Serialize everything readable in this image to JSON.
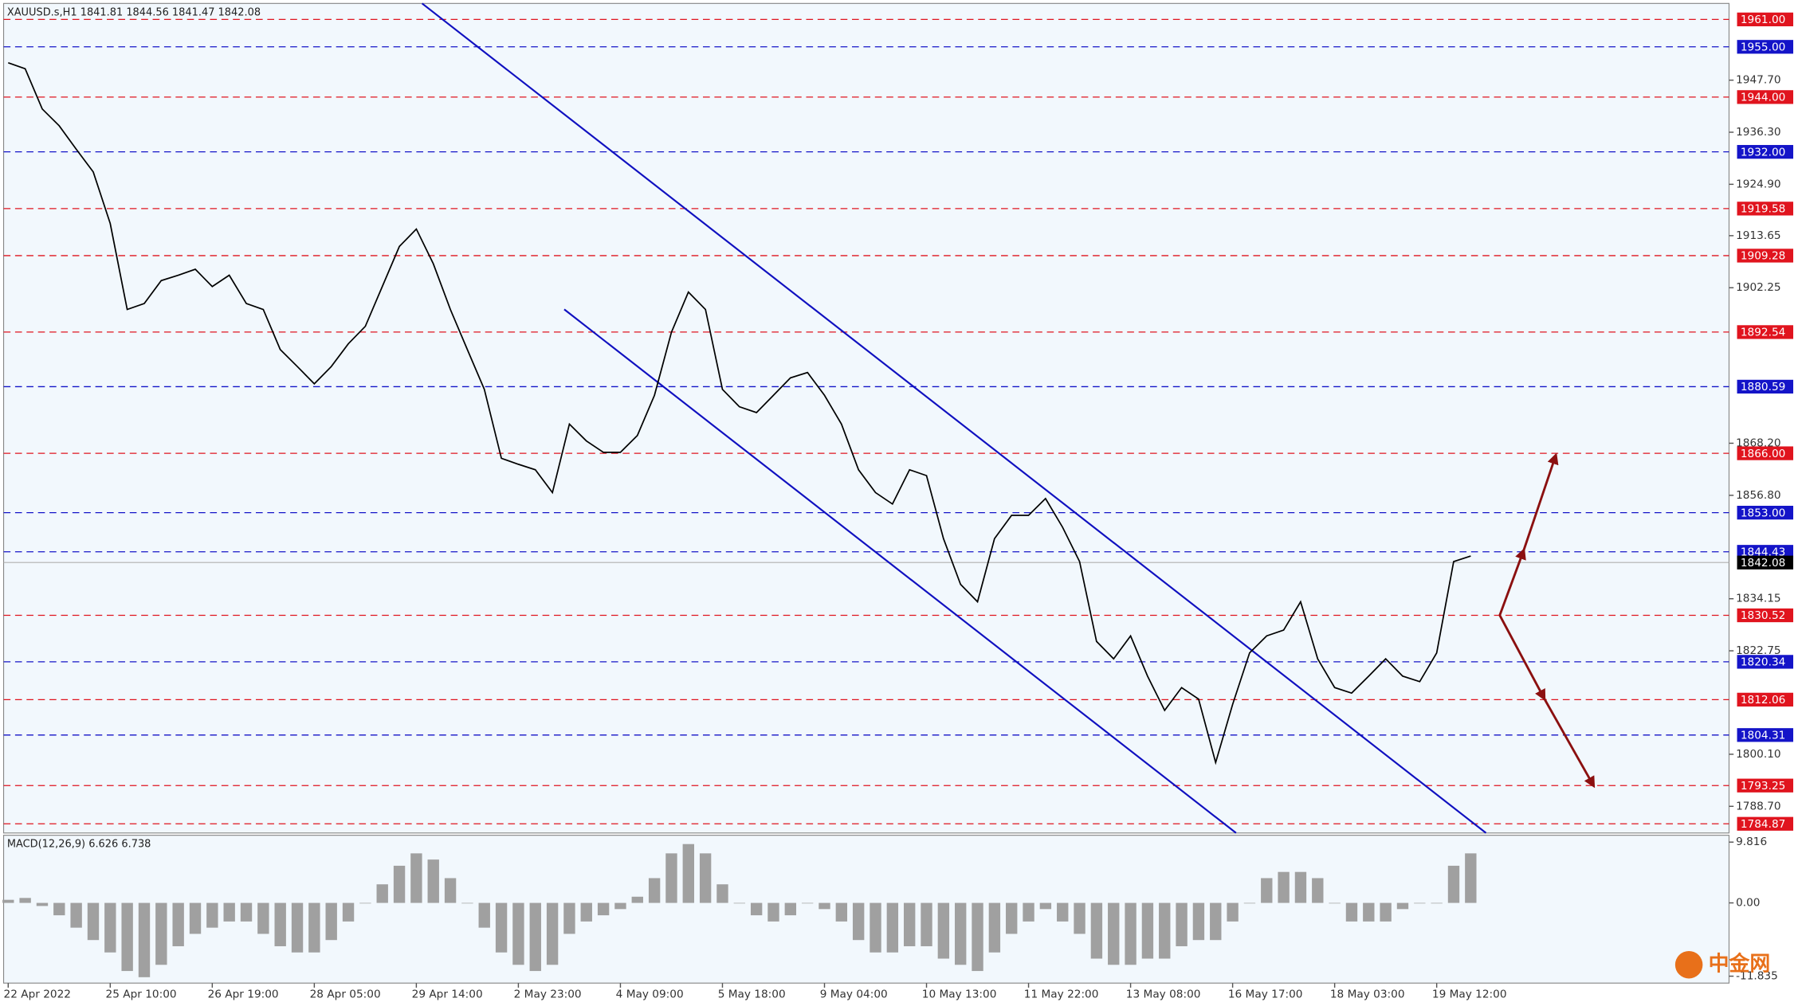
{
  "chart_data": [
    {
      "type": "line",
      "title": "XAUUSD.s,H1  1841.81 1844.56 1841.47 1842.08",
      "categories": [
        "22 Apr 2022",
        null,
        null,
        null,
        null,
        null,
        "25 Apr 10:00",
        null,
        null,
        null,
        null,
        null,
        "26 Apr 19:00",
        null,
        null,
        null,
        null,
        null,
        "28 Apr 05:00",
        null,
        null,
        null,
        null,
        null,
        "29 Apr 14:00",
        null,
        null,
        null,
        null,
        null,
        "2 May 23:00",
        null,
        null,
        null,
        null,
        null,
        "4 May 09:00",
        null,
        null,
        null,
        null,
        null,
        "5 May 18:00",
        null,
        null,
        null,
        null,
        null,
        "9 May 04:00",
        null,
        null,
        null,
        null,
        null,
        "10 May 13:00",
        null,
        null,
        null,
        null,
        null,
        "11 May 22:00",
        null,
        null,
        null,
        null,
        null,
        "13 May 08:00",
        null,
        null,
        null,
        null,
        null,
        "16 May 17:00",
        null,
        null,
        null,
        null,
        null,
        "18 May 03:00",
        null,
        null,
        null,
        null,
        null,
        "19 May 12:00",
        null,
        null
      ],
      "series": [
        {
          "color": "#000000",
          "values": [
            1951.5,
            1950.2,
            1941.4,
            1937.7,
            1932.6,
            1927.6,
            1916.3,
            1897.5,
            1898.8,
            1903.8,
            1905,
            1906.3,
            1902.5,
            1905,
            1898.8,
            1897.5,
            1888.7,
            1885,
            1881.2,
            1885,
            1890,
            1893.8,
            1902.5,
            1911.3,
            1915.1,
            1907.5,
            1897.5,
            1888.7,
            1880,
            1864.9,
            1863.6,
            1862.4,
            1857.4,
            1872.4,
            1868.7,
            1866.2,
            1866.2,
            1869.9,
            1878.7,
            1892.5,
            1901.3,
            1897.5,
            1880,
            1876.2,
            1874.9,
            1878.7,
            1882.5,
            1883.7,
            1878.7,
            1872.4,
            1862.4,
            1857.4,
            1854.9,
            1862.4,
            1861.1,
            1847.3,
            1837.3,
            1833.5,
            1847.3,
            1852.4,
            1852.4,
            1856.1,
            1849.8,
            1842.3,
            1824.8,
            1821,
            1826,
            1817.2,
            1809.7,
            1814.7,
            1812.2,
            1798.3,
            1811,
            1822.3,
            1826,
            1827.3,
            1833.5,
            1821,
            1814.7,
            1813.5,
            1817.2,
            1821,
            1817.2,
            1816,
            1822.3,
            1842.3,
            1843.5
          ]
        }
      ],
      "ylim": [
        1782.86,
        1964.5
      ],
      "yticks": [
        {
          "value": 1947.7,
          "label": "1947.70"
        },
        {
          "value": 1936.3,
          "label": "1936.30"
        },
        {
          "value": 1924.9,
          "label": "1924.90"
        },
        {
          "value": 1913.65,
          "label": "1913.65"
        },
        {
          "value": 1902.25,
          "label": "1902.25"
        },
        {
          "value": 1868.2,
          "label": "1868.20"
        },
        {
          "value": 1856.8,
          "label": "1856.80"
        },
        {
          "value": 1834.15,
          "label": "1834.15"
        },
        {
          "value": 1822.75,
          "label": "1822.75"
        },
        {
          "value": 1800.1,
          "label": "1800.10"
        },
        {
          "value": 1788.7,
          "label": "1788.70"
        }
      ],
      "levels": [
        {
          "value": 1961,
          "label": "1961.00",
          "color": "#e0141e"
        },
        {
          "value": 1955,
          "label": "1955.00",
          "color": "#1414c8"
        },
        {
          "value": 1944,
          "label": "1944.00",
          "color": "#e0141e"
        },
        {
          "value": 1932,
          "label": "1932.00",
          "color": "#1414c8"
        },
        {
          "value": 1919.58,
          "label": "1919.58",
          "color": "#e0141e"
        },
        {
          "value": 1909.28,
          "label": "1909.28",
          "color": "#e0141e"
        },
        {
          "value": 1892.54,
          "label": "1892.54",
          "color": "#e0141e"
        },
        {
          "value": 1880.59,
          "label": "1880.59",
          "color": "#1414c8"
        },
        {
          "value": 1866,
          "label": "1866.00",
          "color": "#e0141e"
        },
        {
          "value": 1853,
          "label": "1853.00",
          "color": "#1414c8"
        },
        {
          "value": 1844.43,
          "label": "1844.43",
          "color": "#1414c8"
        },
        {
          "value": 1830.52,
          "label": "1830.52",
          "color": "#e0141e"
        },
        {
          "value": 1820.34,
          "label": "1820.34",
          "color": "#1414c8"
        },
        {
          "value": 1812.06,
          "label": "1812.06",
          "color": "#e0141e"
        },
        {
          "value": 1804.31,
          "label": "1804.31",
          "color": "#1414c8"
        },
        {
          "value": 1793.25,
          "label": "1793.25",
          "color": "#e0141e"
        },
        {
          "value": 1784.87,
          "label": "1784.87",
          "color": "#e0141e"
        }
      ],
      "current": {
        "value": 1842.08,
        "label": "1842.08",
        "color": "#000000"
      }
    },
    {
      "type": "bar",
      "title": "MACD(12,26,9) 6.626 6.738",
      "color": "#a0a0a0",
      "values": [
        0.5,
        0.8,
        -0.5,
        -2,
        -4,
        -6,
        -8,
        -11,
        -12,
        -10,
        -7,
        -5,
        -4,
        -3,
        -3,
        -5,
        -7,
        -8,
        -8,
        -6,
        -3,
        0,
        3,
        6,
        8,
        7,
        4,
        0,
        -4,
        -8,
        -10,
        -11,
        -10,
        -5,
        -3,
        -2,
        -1,
        1,
        4,
        8,
        9.5,
        8,
        3,
        0,
        -2,
        -3,
        -2,
        0,
        -1,
        -3,
        -6,
        -8,
        -8,
        -7,
        -7,
        -9,
        -10,
        -11,
        -8,
        -5,
        -3,
        -1,
        -3,
        -5,
        -9,
        -10,
        -10,
        -9,
        -9,
        -7,
        -6,
        -6,
        -3,
        0,
        4,
        5,
        5,
        4,
        0,
        -3,
        -3,
        -3,
        -1,
        0,
        0,
        6,
        8
      ],
      "ylim": [
        -12.95,
        10.92
      ],
      "yticks": [
        {
          "value": 9.816,
          "label": "9.816"
        },
        {
          "value": 0,
          "label": "0.00"
        },
        {
          "value": -11.835,
          "label": "-11.835"
        }
      ]
    }
  ],
  "watermark": "中金网"
}
